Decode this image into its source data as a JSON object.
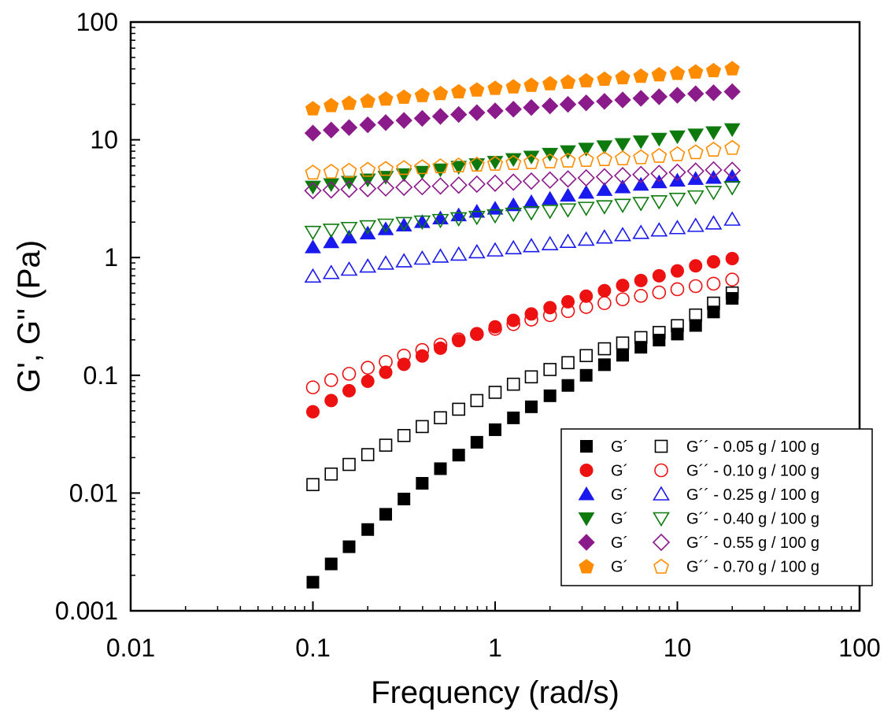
{
  "chart_data": {
    "type": "scatter",
    "xlabel": "Frequency (rad/s)",
    "ylabel": "G', G'' (Pa)",
    "xscale": "log",
    "yscale": "log",
    "xlim": [
      0.01,
      100
    ],
    "ylim": [
      0.001,
      100
    ],
    "xticks": [
      {
        "value": 0.01,
        "label": "0.01"
      },
      {
        "value": 0.1,
        "label": "0.1"
      },
      {
        "value": 1,
        "label": "1"
      },
      {
        "value": 10,
        "label": "10"
      },
      {
        "value": 100,
        "label": "100"
      }
    ],
    "yticks": [
      {
        "value": 0.001,
        "label": "0.001"
      },
      {
        "value": 0.01,
        "label": "0.01"
      },
      {
        "value": 0.1,
        "label": "0.1"
      },
      {
        "value": 1,
        "label": "1"
      },
      {
        "value": 10,
        "label": "10"
      },
      {
        "value": 100,
        "label": "100"
      }
    ],
    "grid": false,
    "legend_position": "bottom-right",
    "legend": [
      {
        "filled_label": "G´",
        "open_label": "G´´ - 0.05 g / 100 g",
        "marker": "square",
        "color": "#000000"
      },
      {
        "filled_label": "G´",
        "open_label": "G´´ - 0.10 g / 100 g",
        "marker": "circle",
        "color": "#ee1111"
      },
      {
        "filled_label": "G´",
        "open_label": "G´´ - 0.25 g / 100 g",
        "marker": "triangle-up",
        "color": "#1a1aee"
      },
      {
        "filled_label": "G´",
        "open_label": "G´´ - 0.40 g / 100 g",
        "marker": "triangle-down",
        "color": "#0e7a0e"
      },
      {
        "filled_label": "G´",
        "open_label": "G´´ - 0.55 g / 100 g",
        "marker": "diamond",
        "color": "#8b1a8b"
      },
      {
        "filled_label": "G´",
        "open_label": "G´´ - 0.70 g / 100 g",
        "marker": "pentagon",
        "color": "#ff8c00"
      }
    ],
    "x": [
      0.1,
      0.126,
      0.158,
      0.2,
      0.251,
      0.316,
      0.398,
      0.501,
      0.631,
      0.794,
      1.0,
      1.26,
      1.58,
      2.0,
      2.51,
      3.16,
      3.98,
      5.01,
      6.31,
      7.94,
      10.0,
      12.6,
      15.8,
      20.0
    ],
    "series": [
      {
        "concentration": "0.05 g / 100 g",
        "modulus": "G´",
        "filled": true,
        "marker": "square",
        "color": "#000000",
        "values": [
          0.00175,
          0.0025,
          0.0035,
          0.0049,
          0.0066,
          0.0089,
          0.0121,
          0.0161,
          0.021,
          0.027,
          0.0345,
          0.0435,
          0.054,
          0.067,
          0.082,
          0.1,
          0.123,
          0.148,
          0.173,
          0.199,
          0.224,
          0.265,
          0.345,
          0.45
        ]
      },
      {
        "concentration": "0.05 g / 100 g",
        "modulus": "G´´",
        "filled": false,
        "marker": "square",
        "color": "#000000",
        "values": [
          0.0118,
          0.0145,
          0.0175,
          0.0212,
          0.0255,
          0.0308,
          0.0367,
          0.0436,
          0.0515,
          0.061,
          0.0717,
          0.084,
          0.097,
          0.112,
          0.128,
          0.147,
          0.168,
          0.188,
          0.209,
          0.231,
          0.264,
          0.325,
          0.41,
          0.5
        ]
      },
      {
        "concentration": "0.10 g / 100 g",
        "modulus": "G´",
        "filled": true,
        "marker": "circle",
        "color": "#ee1111",
        "values": [
          0.049,
          0.061,
          0.074,
          0.089,
          0.106,
          0.124,
          0.146,
          0.17,
          0.197,
          0.226,
          0.258,
          0.293,
          0.332,
          0.375,
          0.421,
          0.47,
          0.523,
          0.58,
          0.638,
          0.7,
          0.77,
          0.85,
          0.92,
          0.98
        ]
      },
      {
        "concentration": "0.10 g / 100 g",
        "modulus": "G´´",
        "filled": false,
        "marker": "circle",
        "color": "#ee1111",
        "values": [
          0.079,
          0.091,
          0.103,
          0.116,
          0.13,
          0.147,
          0.164,
          0.182,
          0.202,
          0.224,
          0.248,
          0.272,
          0.297,
          0.324,
          0.351,
          0.38,
          0.41,
          0.442,
          0.473,
          0.505,
          0.538,
          0.572,
          0.6,
          0.65
        ]
      },
      {
        "concentration": "0.25 g / 100 g",
        "modulus": "G´",
        "filled": true,
        "marker": "triangle-up",
        "color": "#1a1aee",
        "values": [
          1.22,
          1.35,
          1.48,
          1.6,
          1.74,
          1.87,
          2.0,
          2.15,
          2.28,
          2.45,
          2.6,
          2.78,
          2.95,
          3.15,
          3.35,
          3.55,
          3.75,
          3.95,
          4.15,
          4.35,
          4.5,
          4.65,
          4.75,
          4.85
        ]
      },
      {
        "concentration": "0.25 g / 100 g",
        "modulus": "G´´",
        "filled": false,
        "marker": "triangle-up",
        "color": "#1a1aee",
        "values": [
          0.69,
          0.74,
          0.79,
          0.84,
          0.89,
          0.93,
          0.98,
          1.02,
          1.06,
          1.11,
          1.15,
          1.2,
          1.25,
          1.3,
          1.36,
          1.42,
          1.48,
          1.55,
          1.62,
          1.7,
          1.78,
          1.86,
          1.95,
          2.1
        ]
      },
      {
        "concentration": "0.40 g / 100 g",
        "modulus": "G´",
        "filled": true,
        "marker": "triangle-down",
        "color": "#0e7a0e",
        "values": [
          4.0,
          4.2,
          4.4,
          4.6,
          4.85,
          5.1,
          5.35,
          5.6,
          5.9,
          6.2,
          6.5,
          6.85,
          7.2,
          7.6,
          8.0,
          8.4,
          8.8,
          9.2,
          9.7,
          10.2,
          10.7,
          11.1,
          11.6,
          12.3
        ]
      },
      {
        "concentration": "0.40 g / 100 g",
        "modulus": "G´´",
        "filled": false,
        "marker": "triangle-down",
        "color": "#0e7a0e",
        "values": [
          1.65,
          1.72,
          1.78,
          1.84,
          1.9,
          1.96,
          2.02,
          2.08,
          2.15,
          2.21,
          2.28,
          2.35,
          2.42,
          2.49,
          2.56,
          2.64,
          2.72,
          2.8,
          2.9,
          3.0,
          3.15,
          3.3,
          3.6,
          3.95
        ]
      },
      {
        "concentration": "0.55 g / 100 g",
        "modulus": "G´",
        "filled": true,
        "marker": "diamond",
        "color": "#8b1a8b",
        "values": [
          11.4,
          12.1,
          12.7,
          13.4,
          14.0,
          14.6,
          15.2,
          15.8,
          16.4,
          17.0,
          17.6,
          18.2,
          18.8,
          19.4,
          20.0,
          20.6,
          21.2,
          21.8,
          22.5,
          23.2,
          23.9,
          24.6,
          25.1,
          25.6
        ]
      },
      {
        "concentration": "0.55 g / 100 g",
        "modulus": "G´´",
        "filled": false,
        "marker": "diamond",
        "color": "#8b1a8b",
        "values": [
          3.7,
          3.75,
          3.8,
          3.85,
          3.9,
          3.95,
          4.0,
          4.05,
          4.12,
          4.2,
          4.28,
          4.37,
          4.46,
          4.55,
          4.65,
          4.75,
          4.85,
          4.96,
          5.07,
          5.18,
          5.3,
          5.42,
          5.55,
          5.5
        ]
      },
      {
        "concentration": "0.70 g / 100 g",
        "modulus": "G´",
        "filled": true,
        "marker": "pentagon",
        "color": "#ff8c00",
        "values": [
          18.5,
          19.7,
          20.6,
          21.5,
          22.4,
          23.2,
          24.0,
          24.9,
          25.8,
          26.7,
          27.6,
          28.4,
          29.3,
          30.2,
          31.1,
          32.0,
          33.0,
          34.0,
          35.0,
          36.0,
          37.0,
          38.0,
          39.0,
          40.5
        ]
      },
      {
        "concentration": "0.70 g / 100 g",
        "modulus": "G´´",
        "filled": false,
        "marker": "pentagon",
        "color": "#ff8c00",
        "values": [
          5.3,
          5.4,
          5.5,
          5.6,
          5.7,
          5.8,
          5.9,
          6.0,
          6.1,
          6.2,
          6.3,
          6.4,
          6.5,
          6.6,
          6.7,
          6.8,
          6.9,
          7.0,
          7.15,
          7.35,
          7.6,
          7.9,
          8.3,
          8.6
        ]
      }
    ]
  }
}
